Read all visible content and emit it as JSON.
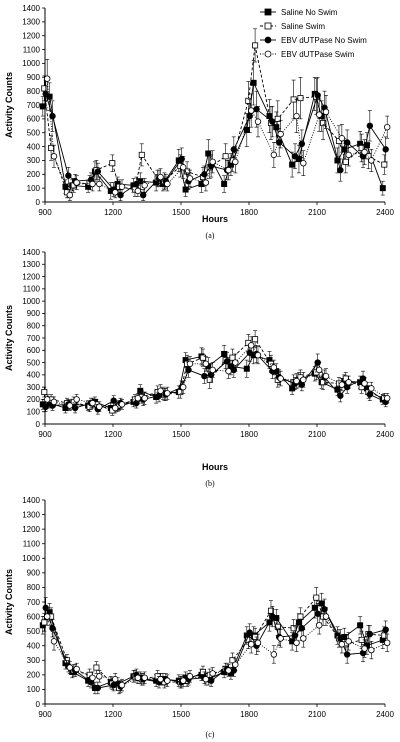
{
  "chart_data": [
    {
      "type": "line",
      "panel_label": "(a)",
      "ylabel": "Activity Counts",
      "xlabel": "Hours",
      "ylim": [
        0,
        1400
      ],
      "xlim": [
        900,
        2400
      ],
      "yticks": [
        0,
        100,
        200,
        300,
        400,
        500,
        600,
        700,
        800,
        900,
        1000,
        1100,
        1200,
        1300,
        1400
      ],
      "xticks": [
        900,
        1200,
        1500,
        1800,
        2100,
        2400
      ],
      "legend_position": "top-right",
      "legend": [
        "Saline No Swim",
        "Saline Swim",
        "EBV dUTPase No Swim",
        "EBV dUTPase Swim"
      ],
      "grid": false,
      "x": [
        900,
        930,
        1000,
        1030,
        1100,
        1130,
        1200,
        1230,
        1300,
        1330,
        1400,
        1430,
        1500,
        1530,
        1600,
        1630,
        1700,
        1730,
        1800,
        1830,
        1900,
        1930,
        2000,
        2030,
        2100,
        2130,
        2200,
        2230,
        2300,
        2330,
        2400
      ],
      "series": [
        {
          "name": "Saline No Swim",
          "marker": "square-filled",
          "line": "solid",
          "color": "#000000",
          "values": [
            690,
            760,
            110,
            120,
            110,
            220,
            80,
            130,
            120,
            150,
            140,
            130,
            300,
            90,
            130,
            350,
            130,
            270,
            520,
            860,
            620,
            540,
            270,
            310,
            780,
            620,
            300,
            380,
            420,
            410,
            100
          ],
          "errors": [
            70,
            100,
            50,
            40,
            40,
            70,
            60,
            50,
            50,
            60,
            60,
            50,
            80,
            50,
            60,
            100,
            60,
            80,
            120,
            160,
            120,
            110,
            90,
            100,
            120,
            110,
            90,
            80,
            90,
            90,
            50
          ]
        },
        {
          "name": "Saline Swim",
          "marker": "square-open",
          "line": "dashed",
          "color": "#000000",
          "values": [
            820,
            390,
            70,
            120,
            140,
            230,
            280,
            110,
            90,
            340,
            170,
            150,
            260,
            220,
            180,
            250,
            330,
            300,
            730,
            1130,
            570,
            600,
            740,
            750,
            760,
            570,
            440,
            290,
            390,
            330,
            270
          ],
          "errors": [
            90,
            90,
            40,
            50,
            50,
            70,
            60,
            50,
            50,
            80,
            60,
            60,
            80,
            70,
            70,
            80,
            90,
            80,
            140,
            120,
            120,
            130,
            140,
            150,
            130,
            120,
            110,
            80,
            100,
            90,
            70
          ]
        },
        {
          "name": "EBV dUTPase No Swim",
          "marker": "circle-filled",
          "line": "solid",
          "color": "#000000",
          "values": [
            780,
            620,
            190,
            150,
            160,
            220,
            90,
            50,
            130,
            50,
            170,
            150,
            310,
            150,
            200,
            260,
            230,
            380,
            620,
            670,
            580,
            430,
            330,
            420,
            770,
            680,
            230,
            430,
            330,
            550,
            380
          ],
          "errors": [
            100,
            110,
            60,
            50,
            50,
            60,
            50,
            40,
            50,
            40,
            60,
            50,
            80,
            60,
            60,
            80,
            70,
            90,
            120,
            130,
            110,
            100,
            90,
            100,
            130,
            120,
            80,
            90,
            80,
            110,
            90
          ]
        },
        {
          "name": "EBV dUTPase Swim",
          "marker": "circle-open",
          "line": "dotted",
          "color": "#000000",
          "values": [
            890,
            330,
            50,
            140,
            130,
            130,
            70,
            110,
            80,
            120,
            180,
            130,
            250,
            170,
            140,
            290,
            230,
            290,
            660,
            580,
            340,
            490,
            620,
            280,
            630,
            650,
            460,
            340,
            360,
            300,
            540
          ],
          "errors": [
            140,
            80,
            40,
            50,
            50,
            50,
            40,
            50,
            40,
            50,
            60,
            50,
            80,
            60,
            60,
            80,
            70,
            80,
            120,
            110,
            90,
            100,
            120,
            90,
            120,
            120,
            100,
            80,
            90,
            80,
            80
          ]
        }
      ]
    },
    {
      "type": "line",
      "panel_label": "(b)",
      "ylabel": "Activity Counts",
      "xlabel": "Hours",
      "ylim": [
        0,
        1400
      ],
      "xlim": [
        900,
        2400
      ],
      "yticks": [
        0,
        100,
        200,
        300,
        400,
        500,
        600,
        700,
        800,
        900,
        1000,
        1100,
        1200,
        1300,
        1400
      ],
      "xticks": [
        900,
        1200,
        1500,
        1800,
        2100,
        2400
      ],
      "grid": false,
      "x": [
        900,
        930,
        1000,
        1030,
        1100,
        1130,
        1200,
        1230,
        1300,
        1330,
        1400,
        1430,
        1500,
        1530,
        1600,
        1630,
        1700,
        1730,
        1800,
        1830,
        1900,
        1930,
        2000,
        2030,
        2100,
        2130,
        2200,
        2230,
        2300,
        2330,
        2400
      ],
      "series": [
        {
          "name": "Saline No Swim",
          "marker": "square-filled",
          "line": "solid",
          "color": "#000000",
          "values": [
            160,
            170,
            130,
            160,
            150,
            180,
            130,
            140,
            180,
            270,
            220,
            250,
            260,
            520,
            550,
            470,
            570,
            470,
            450,
            560,
            520,
            430,
            290,
            360,
            410,
            340,
            280,
            350,
            340,
            290,
            200
          ],
          "errors": [
            40,
            40,
            40,
            40,
            40,
            40,
            40,
            40,
            40,
            50,
            50,
            50,
            50,
            60,
            70,
            70,
            70,
            70,
            70,
            70,
            70,
            60,
            50,
            60,
            60,
            50,
            50,
            50,
            50,
            50,
            40
          ]
        },
        {
          "name": "Saline Swim",
          "marker": "square-open",
          "line": "dashed",
          "color": "#000000",
          "values": [
            260,
            200,
            170,
            180,
            140,
            160,
            110,
            150,
            200,
            220,
            260,
            240,
            260,
            490,
            540,
            360,
            520,
            540,
            660,
            690,
            490,
            360,
            340,
            380,
            420,
            340,
            330,
            370,
            300,
            260,
            210
          ],
          "errors": [
            40,
            40,
            40,
            40,
            40,
            40,
            40,
            40,
            40,
            50,
            50,
            50,
            50,
            70,
            70,
            70,
            70,
            70,
            70,
            70,
            70,
            60,
            60,
            60,
            60,
            60,
            50,
            50,
            50,
            50,
            40
          ]
        },
        {
          "name": "EBV dUTPase No Swim",
          "marker": "circle-filled",
          "line": "solid",
          "color": "#000000",
          "values": [
            140,
            150,
            160,
            130,
            170,
            120,
            190,
            170,
            170,
            200,
            230,
            240,
            300,
            440,
            390,
            400,
            510,
            440,
            580,
            570,
            430,
            380,
            330,
            320,
            500,
            380,
            230,
            300,
            370,
            240,
            180
          ],
          "errors": [
            40,
            40,
            40,
            40,
            40,
            40,
            40,
            40,
            40,
            50,
            50,
            50,
            50,
            60,
            60,
            60,
            70,
            60,
            70,
            70,
            60,
            60,
            50,
            50,
            70,
            60,
            50,
            50,
            60,
            50,
            40
          ]
        },
        {
          "name": "EBV dUTPase Swim",
          "marker": "circle-open",
          "line": "dotted",
          "color": "#000000",
          "values": [
            200,
            180,
            150,
            200,
            170,
            140,
            130,
            160,
            210,
            210,
            270,
            250,
            300,
            490,
            490,
            440,
            430,
            500,
            640,
            560,
            460,
            370,
            350,
            360,
            440,
            390,
            320,
            340,
            330,
            290,
            210
          ],
          "errors": [
            40,
            40,
            40,
            40,
            40,
            40,
            40,
            40,
            40,
            50,
            50,
            50,
            50,
            60,
            60,
            60,
            60,
            70,
            70,
            70,
            60,
            60,
            60,
            60,
            60,
            60,
            50,
            50,
            50,
            50,
            40
          ]
        }
      ]
    },
    {
      "type": "line",
      "panel_label": "(c)",
      "ylabel": "Activity Counts",
      "xlabel": "",
      "ylim": [
        0,
        1400
      ],
      "xlim": [
        900,
        2400
      ],
      "yticks": [
        0,
        100,
        200,
        300,
        400,
        500,
        600,
        700,
        800,
        900,
        1000,
        1100,
        1200,
        1300,
        1400
      ],
      "xticks": [
        900,
        1200,
        1500,
        1800,
        2100,
        2400
      ],
      "grid": false,
      "x": [
        900,
        930,
        1000,
        1030,
        1100,
        1130,
        1200,
        1230,
        1300,
        1330,
        1400,
        1430,
        1500,
        1530,
        1600,
        1630,
        1700,
        1730,
        1800,
        1830,
        1900,
        1930,
        2000,
        2030,
        2100,
        2130,
        2200,
        2230,
        2300,
        2330,
        2400
      ],
      "series": [
        {
          "name": "Saline No Swim",
          "marker": "square-filled",
          "line": "solid",
          "color": "#000000",
          "values": [
            540,
            630,
            280,
            220,
            160,
            110,
            150,
            140,
            190,
            180,
            160,
            170,
            160,
            180,
            200,
            170,
            220,
            210,
            470,
            470,
            560,
            590,
            430,
            560,
            660,
            690,
            470,
            460,
            540,
            400,
            440
          ],
          "errors": [
            60,
            60,
            40,
            40,
            40,
            40,
            40,
            40,
            40,
            40,
            40,
            40,
            40,
            40,
            40,
            40,
            40,
            40,
            60,
            60,
            60,
            60,
            60,
            60,
            70,
            70,
            60,
            60,
            60,
            60,
            60
          ]
        },
        {
          "name": "Saline Swim",
          "marker": "square-open",
          "line": "dashed",
          "color": "#000000",
          "values": [
            560,
            600,
            300,
            230,
            200,
            250,
            140,
            110,
            190,
            170,
            190,
            150,
            150,
            160,
            220,
            200,
            240,
            300,
            440,
            460,
            640,
            530,
            520,
            600,
            730,
            600,
            450,
            410,
            440,
            480,
            470
          ],
          "errors": [
            60,
            60,
            40,
            40,
            40,
            40,
            40,
            40,
            40,
            40,
            40,
            40,
            40,
            40,
            40,
            40,
            40,
            50,
            60,
            60,
            70,
            60,
            60,
            60,
            70,
            60,
            60,
            60,
            60,
            60,
            60
          ]
        },
        {
          "name": "EBV dUTPase No Swim",
          "marker": "circle-filled",
          "line": "solid",
          "color": "#000000",
          "values": [
            660,
            520,
            260,
            230,
            150,
            110,
            130,
            120,
            200,
            170,
            150,
            170,
            150,
            170,
            180,
            160,
            240,
            230,
            490,
            400,
            600,
            460,
            470,
            520,
            620,
            650,
            450,
            340,
            350,
            480,
            510
          ],
          "errors": [
            70,
            60,
            40,
            40,
            40,
            40,
            40,
            40,
            40,
            40,
            40,
            40,
            40,
            40,
            40,
            40,
            40,
            40,
            60,
            60,
            70,
            60,
            60,
            60,
            70,
            70,
            60,
            60,
            60,
            60,
            60
          ]
        },
        {
          "name": "EBV dUTPase Swim",
          "marker": "circle-open",
          "line": "dotted",
          "color": "#000000",
          "values": [
            600,
            430,
            250,
            240,
            180,
            190,
            170,
            130,
            180,
            180,
            170,
            160,
            160,
            190,
            170,
            210,
            230,
            270,
            410,
            420,
            340,
            450,
            420,
            450,
            540,
            600,
            410,
            430,
            380,
            370,
            420
          ],
          "errors": [
            60,
            60,
            40,
            40,
            40,
            40,
            40,
            40,
            40,
            40,
            40,
            40,
            40,
            40,
            40,
            40,
            40,
            40,
            60,
            60,
            60,
            60,
            60,
            60,
            60,
            60,
            60,
            60,
            60,
            60,
            60
          ]
        }
      ]
    }
  ]
}
